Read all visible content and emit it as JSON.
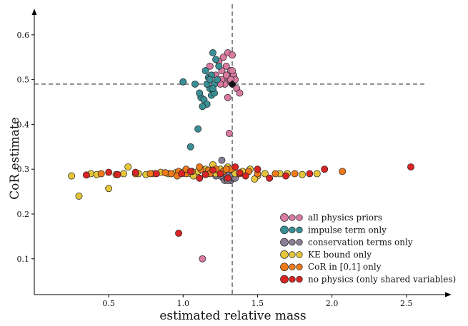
{
  "chart_data": {
    "type": "scatter",
    "title": "",
    "xlabel": "estimated relative mass",
    "ylabel": "CoR estimate",
    "xlim": [
      0,
      2.65
    ],
    "ylim": [
      0.02,
      0.63
    ],
    "xticks": [
      0.5,
      1.0,
      1.5,
      2.0,
      2.5
    ],
    "xtick_labels": [
      "0.5",
      "1.0",
      "1.5",
      "2.0",
      "2.5"
    ],
    "yticks": [
      0.1,
      0.2,
      0.3,
      0.4,
      0.5,
      0.6
    ],
    "ytick_labels": [
      "0.1",
      "0.2",
      "0.3",
      "0.4",
      "0.5",
      "0.6"
    ],
    "grid": false,
    "legend_position": "bottom-right",
    "reference": {
      "x": 1.33,
      "y": 0.49,
      "marker": "diamond",
      "color": "#111111"
    },
    "series": [
      {
        "name": "all physics priors",
        "color": "#d97aa0",
        "points": [
          [
            1.18,
            0.53
          ],
          [
            1.22,
            0.51
          ],
          [
            1.24,
            0.54
          ],
          [
            1.26,
            0.52
          ],
          [
            1.28,
            0.5
          ],
          [
            1.29,
            0.53
          ],
          [
            1.3,
            0.51
          ],
          [
            1.31,
            0.5
          ],
          [
            1.32,
            0.52
          ],
          [
            1.33,
            0.49
          ],
          [
            1.34,
            0.51
          ],
          [
            1.35,
            0.5
          ],
          [
            1.36,
            0.48
          ],
          [
            1.3,
            0.56
          ],
          [
            1.33,
            0.555
          ],
          [
            1.38,
            0.47
          ],
          [
            1.3,
            0.46
          ],
          [
            1.27,
            0.55
          ],
          [
            1.31,
            0.38
          ],
          [
            1.13,
            0.1
          ],
          [
            1.28,
            0.49
          ],
          [
            1.32,
            0.5
          ],
          [
            1.26,
            0.5
          ],
          [
            1.29,
            0.51
          ],
          [
            1.25,
            0.49
          ],
          [
            1.33,
            0.52
          ]
        ]
      },
      {
        "name": "impulse term only",
        "color": "#3a8f95",
        "points": [
          [
            1.0,
            0.495
          ],
          [
            1.08,
            0.49
          ],
          [
            1.15,
            0.52
          ],
          [
            1.2,
            0.56
          ],
          [
            1.22,
            0.545
          ],
          [
            1.17,
            0.505
          ],
          [
            1.21,
            0.49
          ],
          [
            1.12,
            0.46
          ],
          [
            1.14,
            0.455
          ],
          [
            1.16,
            0.445
          ],
          [
            1.19,
            0.465
          ],
          [
            1.13,
            0.44
          ],
          [
            1.1,
            0.39
          ],
          [
            1.05,
            0.35
          ],
          [
            1.23,
            0.5
          ],
          [
            1.18,
            0.48
          ],
          [
            1.21,
            0.47
          ],
          [
            1.19,
            0.51
          ],
          [
            1.24,
            0.53
          ],
          [
            1.16,
            0.49
          ],
          [
            1.11,
            0.47
          ],
          [
            1.2,
            0.48
          ],
          [
            1.18,
            0.5
          ]
        ]
      },
      {
        "name": "conservation terms only",
        "color": "#8a7f96",
        "points": [
          [
            1.26,
            0.32
          ],
          [
            1.27,
            0.28
          ],
          [
            1.28,
            0.275
          ],
          [
            1.3,
            0.285
          ],
          [
            1.31,
            0.29
          ],
          [
            1.29,
            0.28
          ],
          [
            1.32,
            0.275
          ],
          [
            1.34,
            0.28
          ],
          [
            1.33,
            0.285
          ],
          [
            1.27,
            0.29
          ],
          [
            1.25,
            0.285
          ],
          [
            1.35,
            0.28
          ],
          [
            1.22,
            0.285
          ],
          [
            1.3,
            0.275
          ]
        ]
      },
      {
        "name": "KE bound only",
        "color": "#e5c53a",
        "points": [
          [
            0.25,
            0.285
          ],
          [
            0.3,
            0.24
          ],
          [
            0.38,
            0.29
          ],
          [
            0.42,
            0.288
          ],
          [
            0.5,
            0.257
          ],
          [
            0.6,
            0.29
          ],
          [
            0.63,
            0.305
          ],
          [
            0.7,
            0.29
          ],
          [
            0.75,
            0.288
          ],
          [
            0.8,
            0.29
          ],
          [
            0.85,
            0.293
          ],
          [
            0.9,
            0.29
          ],
          [
            0.95,
            0.292
          ],
          [
            1.0,
            0.293
          ],
          [
            1.05,
            0.29
          ],
          [
            1.1,
            0.295
          ],
          [
            1.15,
            0.3
          ],
          [
            1.2,
            0.31
          ],
          [
            1.25,
            0.3
          ],
          [
            1.3,
            0.305
          ],
          [
            1.35,
            0.29
          ],
          [
            1.4,
            0.295
          ],
          [
            1.45,
            0.3
          ],
          [
            1.5,
            0.285
          ],
          [
            1.55,
            0.29
          ],
          [
            1.65,
            0.29
          ],
          [
            1.7,
            0.29
          ],
          [
            1.8,
            0.288
          ],
          [
            1.9,
            0.29
          ],
          [
            1.48,
            0.278
          ],
          [
            1.22,
            0.29
          ],
          [
            1.07,
            0.285
          ]
        ]
      },
      {
        "name": "CoR in [0,1] only",
        "color": "#ef7a1a",
        "points": [
          [
            0.45,
            0.29
          ],
          [
            0.55,
            0.288
          ],
          [
            0.68,
            0.29
          ],
          [
            0.78,
            0.29
          ],
          [
            0.88,
            0.292
          ],
          [
            0.92,
            0.29
          ],
          [
            0.97,
            0.295
          ],
          [
            1.02,
            0.29
          ],
          [
            1.06,
            0.295
          ],
          [
            1.12,
            0.3
          ],
          [
            1.17,
            0.298
          ],
          [
            1.22,
            0.3
          ],
          [
            1.27,
            0.295
          ],
          [
            1.32,
            0.3
          ],
          [
            1.38,
            0.29
          ],
          [
            1.44,
            0.295
          ],
          [
            1.5,
            0.29
          ],
          [
            1.62,
            0.29
          ],
          [
            1.75,
            0.29
          ],
          [
            2.07,
            0.295
          ],
          [
            1.11,
            0.305
          ],
          [
            0.96,
            0.285
          ],
          [
            1.18,
            0.29
          ],
          [
            1.29,
            0.3
          ],
          [
            1.02,
            0.3
          ]
        ]
      },
      {
        "name": "no physics (only shared variables)",
        "color": "#d82424",
        "points": [
          [
            0.35,
            0.287
          ],
          [
            0.5,
            0.293
          ],
          [
            0.56,
            0.288
          ],
          [
            0.68,
            0.293
          ],
          [
            0.82,
            0.29
          ],
          [
            0.97,
            0.157
          ],
          [
            1.05,
            0.295
          ],
          [
            1.11,
            0.28
          ],
          [
            1.15,
            0.288
          ],
          [
            1.2,
            0.298
          ],
          [
            1.3,
            0.28
          ],
          [
            1.38,
            0.292
          ],
          [
            1.42,
            0.285
          ],
          [
            1.5,
            0.3
          ],
          [
            1.58,
            0.28
          ],
          [
            1.69,
            0.285
          ],
          [
            1.85,
            0.29
          ],
          [
            1.95,
            0.3
          ],
          [
            2.53,
            0.305
          ],
          [
            1.35,
            0.305
          ],
          [
            1.25,
            0.29
          ],
          [
            0.99,
            0.29
          ]
        ]
      }
    ]
  }
}
